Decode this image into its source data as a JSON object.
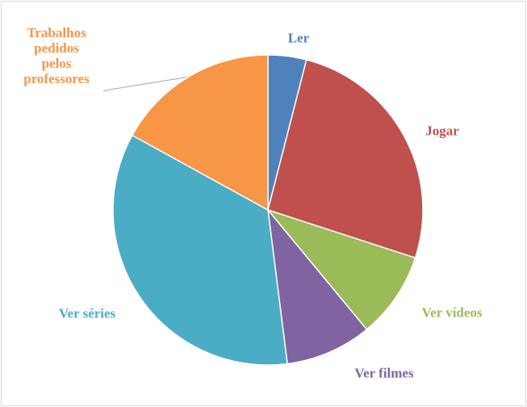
{
  "chart_data": {
    "type": "pie",
    "categories": [
      "Ler",
      "Jogar",
      "Ver vídeos",
      "Ver filmes",
      "Ver séries",
      "Trabalhos pedidos pelos professores"
    ],
    "values": [
      4,
      26,
      9,
      9,
      35,
      17
    ],
    "colors": [
      "#4f81bd",
      "#c0504d",
      "#9bbb59",
      "#8064a2",
      "#4bacc6",
      "#f79646"
    ]
  }
}
